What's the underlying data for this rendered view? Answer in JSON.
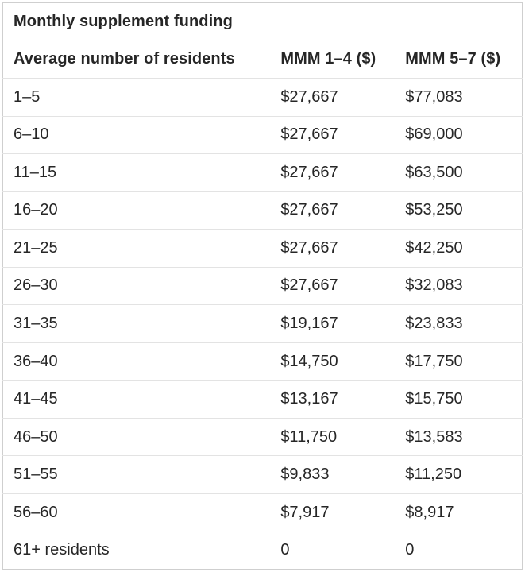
{
  "colors": {
    "text": "#262626",
    "row_separator": "#e3e3e3",
    "outer_border": "#cfcfcf",
    "background": "#ffffff"
  },
  "chart_data": {
    "type": "table",
    "title": "Monthly supplement funding",
    "columns": [
      "Average number of residents",
      "MMM 1–4 ($)",
      "MMM 5–7 ($)"
    ],
    "rows": [
      [
        "1–5",
        "$27,667",
        "$77,083"
      ],
      [
        "6–10",
        "$27,667",
        "$69,000"
      ],
      [
        "11–15",
        "$27,667",
        "$63,500"
      ],
      [
        "16–20",
        "$27,667",
        "$53,250"
      ],
      [
        "21–25",
        "$27,667",
        "$42,250"
      ],
      [
        "26–30",
        "$27,667",
        "$32,083"
      ],
      [
        "31–35",
        "$19,167",
        "$23,833"
      ],
      [
        "36–40",
        "$14,750",
        "$17,750"
      ],
      [
        "41–45",
        "$13,167",
        "$15,750"
      ],
      [
        "46–50",
        "$11,750",
        "$13,583"
      ],
      [
        "51–55",
        "$9,833",
        "$11,250"
      ],
      [
        "56–60",
        "$7,917",
        "$8,917"
      ],
      [
        "61+ residents",
        "0",
        "0"
      ]
    ],
    "numeric_values": {
      "mmm_1_4": [
        27667,
        27667,
        27667,
        27667,
        27667,
        27667,
        19167,
        14750,
        13167,
        11750,
        9833,
        7917,
        0
      ],
      "mmm_5_7": [
        77083,
        69000,
        63500,
        53250,
        42250,
        32083,
        23833,
        17750,
        15750,
        13583,
        11250,
        8917,
        0
      ]
    }
  }
}
